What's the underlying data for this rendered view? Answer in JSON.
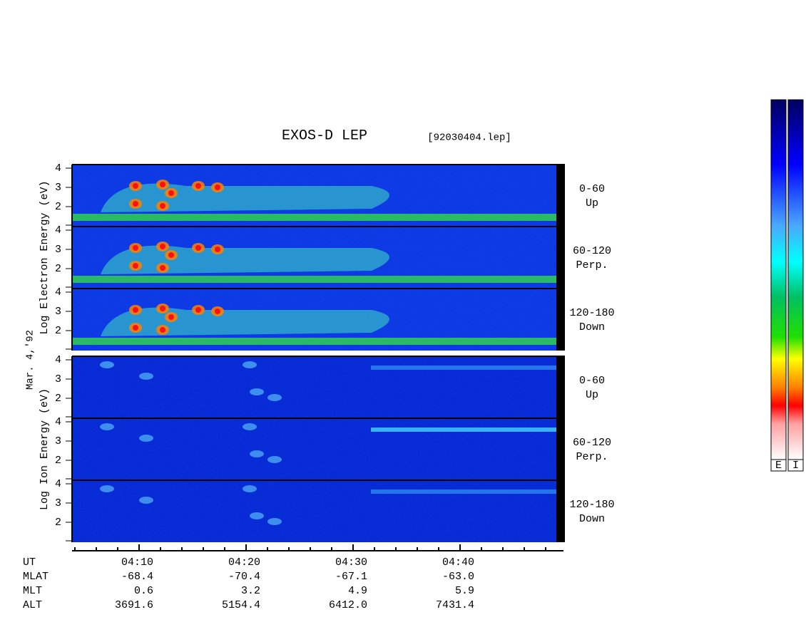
{
  "title": "EXOS-D LEP",
  "file": "[92030404.lep]",
  "date_label": "Mar. 4,'92",
  "groups": [
    {
      "y_label": "Log Electron Energy (eV)",
      "panels": [
        {
          "label": "0-60",
          "sublabel": "Up",
          "ticks": [
            "4",
            "3",
            "2"
          ]
        },
        {
          "label": "60-120",
          "sublabel": "Perp.",
          "ticks": [
            "4",
            "3",
            "2"
          ]
        },
        {
          "label": "120-180",
          "sublabel": "Down",
          "ticks": [
            "4",
            "3",
            "2"
          ]
        }
      ]
    },
    {
      "y_label": "Log Ion Energy (eV)",
      "panels": [
        {
          "label": "0-60",
          "sublabel": "Up",
          "ticks": [
            "4",
            "3",
            "2"
          ]
        },
        {
          "label": "60-120",
          "sublabel": "Perp.",
          "ticks": [
            "4",
            "3",
            "2"
          ]
        },
        {
          "label": "120-180",
          "sublabel": "Down",
          "ticks": [
            "4",
            "3",
            "2"
          ]
        }
      ]
    }
  ],
  "time_axis": {
    "rows": [
      {
        "name": "UT",
        "values": [
          "04:10",
          "04:20",
          "04:30",
          "04:40"
        ]
      },
      {
        "name": "MLAT",
        "values": [
          "-68.4",
          "-70.4",
          "-67.1",
          "-63.0"
        ]
      },
      {
        "name": "MLT",
        "values": [
          "0.6",
          "3.2",
          "4.9",
          "5.9"
        ]
      },
      {
        "name": "ALT",
        "values": [
          "3691.6",
          "5154.4",
          "6412.0",
          "7431.4"
        ]
      }
    ]
  },
  "colorbars": [
    "E",
    "I"
  ]
}
